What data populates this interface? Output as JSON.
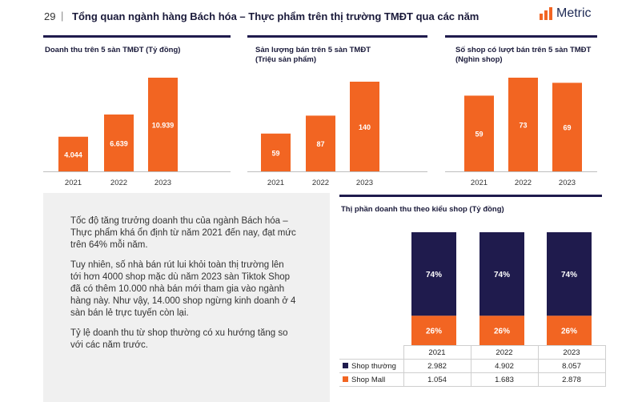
{
  "header": {
    "page_number": "29",
    "separator": "|",
    "title": "Tổng quan ngành hàng Bách hóa – Thực phẩm trên thị trường TMĐT qua các năm",
    "logo": "Metric"
  },
  "colors": {
    "orange": "#f26522",
    "navy": "#1f1b4d"
  },
  "text_block": {
    "paragraphs": [
      "Tốc độ tăng trưởng doanh thu của ngành Bách hóa – Thực phẩm khá ổn định từ năm 2021 đến nay, đạt mức trên 64% mỗi năm.",
      "Tuy nhiên, số nhà bán rút lui khỏi toàn thị trường lên tới hơn 4000 shop mặc dù năm 2023 sàn Tiktok Shop đã có thêm 10.000 nhà bán mới tham gia vào ngành hàng này. Như vậy, 14.000 shop ngừng kinh doanh ở 4 sàn bán lẻ trực tuyến còn lại.",
      "Tỷ lệ doanh thu từ shop thường có xu hướng tăng so với các năm trước."
    ]
  },
  "chart_data": [
    {
      "type": "bar",
      "title": "Doanh thu trên 5 sàn TMĐT (Tỷ đồng)",
      "categories": [
        "2021",
        "2022",
        "2023"
      ],
      "values": [
        4044,
        6639,
        10939
      ],
      "labels": [
        "4.044",
        "6.639",
        "10.939"
      ],
      "ylim": [
        0,
        10939
      ]
    },
    {
      "type": "bar",
      "title": "Sản lượng bán trên 5 sàn TMĐT",
      "subtitle": "(Triệu sản phẩm)",
      "categories": [
        "2021",
        "2022",
        "2023"
      ],
      "values": [
        59,
        87,
        140
      ],
      "labels": [
        "59",
        "87",
        "140"
      ],
      "ylim": [
        0,
        140
      ]
    },
    {
      "type": "bar",
      "title": "Số shop có lượt bán trên 5 sàn TMĐT",
      "subtitle": "(Nghìn shop)",
      "categories": [
        "2021",
        "2022",
        "2023"
      ],
      "values": [
        59,
        73,
        69
      ],
      "labels": [
        "59",
        "73",
        "69"
      ],
      "ylim": [
        0,
        73
      ]
    },
    {
      "type": "stacked-bar-100",
      "title": "Thị phần doanh thu theo kiểu shop (Tỷ đồng)",
      "categories": [
        "2021",
        "2022",
        "2023"
      ],
      "series": [
        {
          "name": "Shop thường",
          "color": "#1f1b4d",
          "percent": [
            74,
            74,
            74
          ],
          "percent_labels": [
            "74%",
            "74%",
            "74%"
          ],
          "table_values": [
            "2.982",
            "4.902",
            "8.057"
          ]
        },
        {
          "name": "Shop Mall",
          "color": "#f26522",
          "percent": [
            26,
            26,
            26
          ],
          "percent_labels": [
            "26%",
            "26%",
            "26%"
          ],
          "table_values": [
            "1.054",
            "1.683",
            "2.878"
          ]
        }
      ]
    }
  ]
}
